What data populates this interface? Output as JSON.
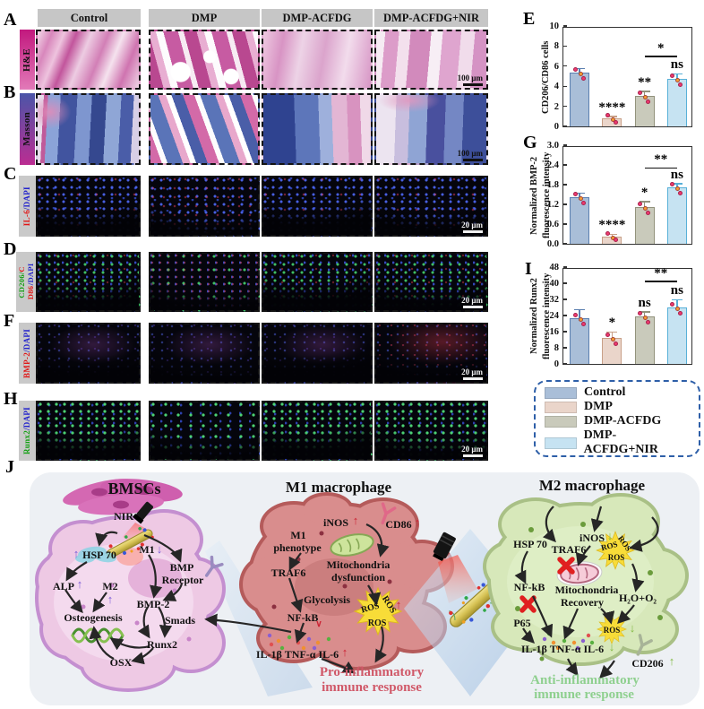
{
  "figure": {
    "columns": [
      "Control",
      "DMP",
      "DMP-ACFDG",
      "DMP-ACFDG+NIR"
    ]
  },
  "rows": {
    "a": {
      "letter": "A",
      "label": "H&E",
      "scale": "100 μm"
    },
    "b": {
      "letter": "B",
      "label": "Masson",
      "scale": "100 μm"
    },
    "c": {
      "letter": "C",
      "parts": [
        {
          "t": "IL-6",
          "c": "#e01616"
        },
        {
          "t": "/DAPI",
          "c": "#2222cc"
        }
      ],
      "scale": "20 μm"
    },
    "d": {
      "letter": "D",
      "parts": [
        {
          "t": "CD206/",
          "c": "#14a014"
        },
        {
          "t": "C",
          "c": "#e01616"
        },
        {
          "t": "D86",
          "c": "#e01616"
        },
        {
          "t": "/DAPI",
          "c": "#2222cc"
        }
      ],
      "scale": "20 μm"
    },
    "f": {
      "letter": "F",
      "parts": [
        {
          "t": "BMP-2",
          "c": "#e01616"
        },
        {
          "t": "/DAPI",
          "c": "#2222cc"
        }
      ],
      "scale": "20 μm"
    },
    "h": {
      "letter": "H",
      "parts": [
        {
          "t": "Runx2",
          "c": "#14a014"
        },
        {
          "t": "/DAPI",
          "c": "#2222cc"
        }
      ],
      "scale": "20 μm"
    }
  },
  "chart_data": [
    {
      "type": "bar",
      "letter": "E",
      "ylabel_lines": [
        "CD206/CD86 cells"
      ],
      "categories": [
        "Control",
        "DMP",
        "DMP-ACFDG",
        "DMP-ACFDG+NIR"
      ],
      "values": [
        5.4,
        0.8,
        3.05,
        4.75
      ],
      "errors": [
        0.3,
        0.12,
        0.35,
        0.4
      ],
      "ylim": [
        0,
        10
      ],
      "yticks": [
        0,
        2,
        4,
        6,
        8,
        10
      ],
      "ytick_labels": [
        "0",
        "2",
        "4",
        "6",
        "8",
        "10"
      ],
      "sig": [
        "",
        "****",
        "**",
        "ns"
      ],
      "comparison": {
        "between": [
          2,
          3
        ],
        "label": "*",
        "y": 6.9
      },
      "bar_edges": [
        "#5b7fb0",
        "#c8a088",
        "#92927c",
        "#58b0d8"
      ],
      "dot_colors": [
        "#ee3a6e",
        "#f5a030"
      ]
    },
    {
      "type": "bar",
      "letter": "G",
      "ylabel_lines": [
        "Normalized BMP-2",
        "fluorescence intensity"
      ],
      "categories": [
        "Control",
        "DMP",
        "DMP-ACFDG",
        "DMP-ACFDG+NIR"
      ],
      "values": [
        1.42,
        0.22,
        1.12,
        1.72
      ],
      "errors": [
        0.1,
        0.04,
        0.14,
        0.09
      ],
      "ylim": [
        0,
        3.0
      ],
      "yticks": [
        0,
        0.6,
        1.2,
        1.8,
        2.4,
        3.0
      ],
      "ytick_labels": [
        "0.0",
        "0.6",
        "1.2",
        "1.8",
        "2.4",
        "3.0"
      ],
      "sig": [
        "",
        "****",
        "*",
        "ns"
      ],
      "comparison": {
        "between": [
          2,
          3
        ],
        "label": "**",
        "y": 2.28
      },
      "bar_edges": [
        "#5b7fb0",
        "#c8a088",
        "#92927c",
        "#58b0d8"
      ],
      "dot_colors": [
        "#ee3a6e",
        "#f5a030"
      ]
    },
    {
      "type": "bar",
      "letter": "I",
      "ylabel_lines": [
        "Normalized Runx2",
        "fluorescence intensity"
      ],
      "categories": [
        "Control",
        "DMP",
        "DMP-ACFDG",
        "DMP-ACFDG+NIR"
      ],
      "values": [
        22.5,
        13,
        23.5,
        28
      ],
      "errors": [
        4,
        2.5,
        2,
        3.5
      ],
      "ylim": [
        0,
        48
      ],
      "yticks": [
        0,
        8,
        16,
        24,
        32,
        40,
        48
      ],
      "ytick_labels": [
        "0",
        "8",
        "16",
        "24",
        "32",
        "40",
        "48"
      ],
      "sig": [
        "",
        "*",
        "ns",
        "ns"
      ],
      "comparison": {
        "between": [
          2,
          3
        ],
        "label": "**",
        "y": 40.5
      },
      "bar_edges": [
        "#5b7fb0",
        "#c8a088",
        "#92927c",
        "#58b0d8"
      ],
      "dot_colors": [
        "#ee3a6e",
        "#f5a030"
      ]
    }
  ],
  "legend": {
    "border_color": "#2e5fa8",
    "items": [
      {
        "label": "Control",
        "color": "#a9bed8"
      },
      {
        "label": "DMP",
        "color": "#ead5ca"
      },
      {
        "label": "DMP-ACFDG",
        "color": "#c9cabb"
      },
      {
        "label": "DMP-ACFDG+NIR",
        "color": "#c6e3f2"
      }
    ]
  },
  "diagram": {
    "letter": "J",
    "marks": {
      "up": "↑",
      "down": "↓",
      "vee": "∨"
    },
    "bmsc": {
      "title": "BMSCs",
      "nir": "NIR",
      "hsp70": "HSP 70",
      "m1": "M1",
      "bmp_receptor_line1": "BMP",
      "bmp_receptor_line2": "Receptor",
      "alp": "ALP",
      "m2": "M2",
      "bmp2": "BMP-2",
      "smads": "Smads",
      "osteogenesis": "Osteogenesis",
      "runx2": "Runx2",
      "osx": "OSX"
    },
    "m1cell": {
      "title": "M1 macrophage",
      "inos": "iNOS",
      "cd86": "CD86",
      "phenotype_line1": "M1",
      "phenotype_line2": "phenotype",
      "traf6": "TRAF6",
      "mito_line1": "Mitochondria",
      "mito_line2": "dysfunction",
      "glycolysis": "Glycolysis",
      "nfkb": "NF-kB",
      "ros": "ROS",
      "cytokines": "IL-1β TNF-α IL-6",
      "response_line1": "Pro-inflammatory",
      "response_line2": "immune response"
    },
    "m2cell": {
      "title": "M2 macrophage",
      "hsp70": "HSP 70",
      "traf6": "TRAF6",
      "inos": "iNOS",
      "nfkb": "NF-kB",
      "mito_line1": "Mitochondria",
      "mito_line2": "Recovery",
      "h2o2": "H₂O+O₂",
      "p65": "P65",
      "ros": "ROS",
      "cytokines": "IL-1β TNF-α IL-6",
      "cd206": "CD206",
      "response_line1": "Anti-inflammatory",
      "response_line2": "immune response"
    }
  }
}
